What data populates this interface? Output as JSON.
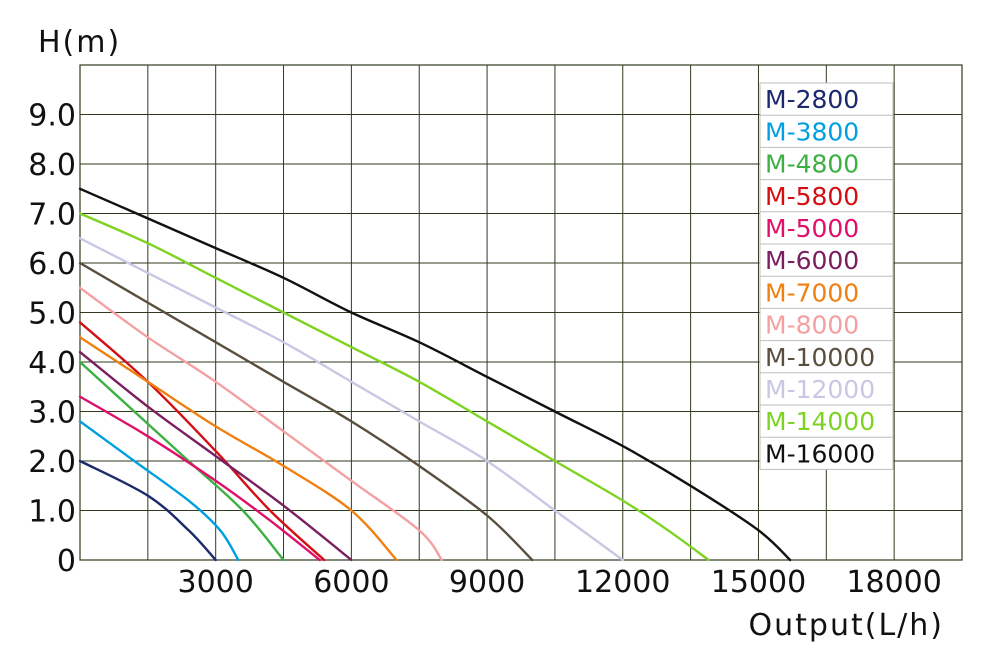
{
  "chart_data": {
    "type": "line",
    "xlabel": "Output(L/h)",
    "ylabel": "H(m)",
    "xlim": [
      0,
      19500
    ],
    "ylim": [
      0,
      10
    ],
    "grid": true,
    "legend_position": "top-right",
    "x_ticks": [
      3000,
      6000,
      9000,
      12000,
      15000,
      18000
    ],
    "x_tick_labels": [
      "3000",
      "6000",
      "9000",
      "12000",
      "15000",
      "18000"
    ],
    "y_ticks": [
      0,
      1,
      2,
      3,
      4,
      5,
      6,
      7,
      8,
      9
    ],
    "y_tick_labels": [
      "0",
      "1.0",
      "2.0",
      "3.0",
      "4.0",
      "5.0",
      "6.0",
      "7.0",
      "8.0",
      "9.0"
    ],
    "series": [
      {
        "name": "M-2800",
        "color": "#1a2a6c",
        "points": [
          [
            0,
            2.0
          ],
          [
            1500,
            1.3
          ],
          [
            2400,
            0.6
          ],
          [
            3000,
            0
          ]
        ]
      },
      {
        "name": "M-3800",
        "color": "#00a0e0",
        "points": [
          [
            0,
            2.8
          ],
          [
            1200,
            2.0
          ],
          [
            2400,
            1.2
          ],
          [
            3100,
            0.6
          ],
          [
            3500,
            0
          ]
        ]
      },
      {
        "name": "M-4800",
        "color": "#3cb043",
        "points": [
          [
            0,
            4.0
          ],
          [
            1200,
            3.0
          ],
          [
            2400,
            2.0
          ],
          [
            3600,
            1.0
          ],
          [
            4500,
            0
          ]
        ]
      },
      {
        "name": "M-5800",
        "color": "#d40f14",
        "points": [
          [
            0,
            4.8
          ],
          [
            1500,
            3.6
          ],
          [
            3000,
            2.2
          ],
          [
            4200,
            1.0
          ],
          [
            5400,
            0
          ]
        ]
      },
      {
        "name": "M-5000",
        "color": "#e0106a",
        "points": [
          [
            0,
            3.3
          ],
          [
            1500,
            2.5
          ],
          [
            3000,
            1.6
          ],
          [
            4200,
            0.8
          ],
          [
            5300,
            0
          ]
        ]
      },
      {
        "name": "M-6000",
        "color": "#7a2060",
        "points": [
          [
            0,
            4.2
          ],
          [
            1500,
            3.1
          ],
          [
            3000,
            2.1
          ],
          [
            4500,
            1.1
          ],
          [
            6000,
            0
          ]
        ]
      },
      {
        "name": "M-7000",
        "color": "#f08010",
        "points": [
          [
            0,
            4.5
          ],
          [
            1500,
            3.6
          ],
          [
            3000,
            2.7
          ],
          [
            4500,
            1.9
          ],
          [
            6000,
            1.0
          ],
          [
            7000,
            0
          ]
        ]
      },
      {
        "name": "M-8000",
        "color": "#f4a0a0",
        "points": [
          [
            0,
            5.5
          ],
          [
            1500,
            4.5
          ],
          [
            3000,
            3.6
          ],
          [
            4500,
            2.6
          ],
          [
            6000,
            1.6
          ],
          [
            7500,
            0.6
          ],
          [
            8000,
            0
          ]
        ]
      },
      {
        "name": "M-10000",
        "color": "#5a4e3e",
        "points": [
          [
            0,
            6.0
          ],
          [
            1500,
            5.2
          ],
          [
            3000,
            4.4
          ],
          [
            4500,
            3.6
          ],
          [
            6000,
            2.8
          ],
          [
            7500,
            1.9
          ],
          [
            9000,
            0.9
          ],
          [
            10000,
            0
          ]
        ]
      },
      {
        "name": "M-12000",
        "color": "#c8c8e4",
        "points": [
          [
            0,
            6.5
          ],
          [
            1500,
            5.8
          ],
          [
            3000,
            5.1
          ],
          [
            4500,
            4.4
          ],
          [
            6000,
            3.6
          ],
          [
            7500,
            2.8
          ],
          [
            9000,
            2.0
          ],
          [
            10500,
            1.0
          ],
          [
            12000,
            0
          ]
        ]
      },
      {
        "name": "M-14000",
        "color": "#7ed321",
        "points": [
          [
            0,
            7.0
          ],
          [
            1500,
            6.4
          ],
          [
            3000,
            5.7
          ],
          [
            4500,
            5.0
          ],
          [
            6000,
            4.3
          ],
          [
            7500,
            3.6
          ],
          [
            9000,
            2.8
          ],
          [
            10500,
            2.0
          ],
          [
            12000,
            1.2
          ],
          [
            13000,
            0.6
          ],
          [
            13900,
            0
          ]
        ]
      },
      {
        "name": "M-16000",
        "color": "#111111",
        "points": [
          [
            0,
            7.5
          ],
          [
            1500,
            6.9
          ],
          [
            3000,
            6.3
          ],
          [
            4500,
            5.7
          ],
          [
            6000,
            5.0
          ],
          [
            7500,
            4.4
          ],
          [
            9000,
            3.7
          ],
          [
            10500,
            3.0
          ],
          [
            12000,
            2.3
          ],
          [
            13500,
            1.5
          ],
          [
            15000,
            0.6
          ],
          [
            15700,
            0
          ]
        ]
      }
    ]
  }
}
